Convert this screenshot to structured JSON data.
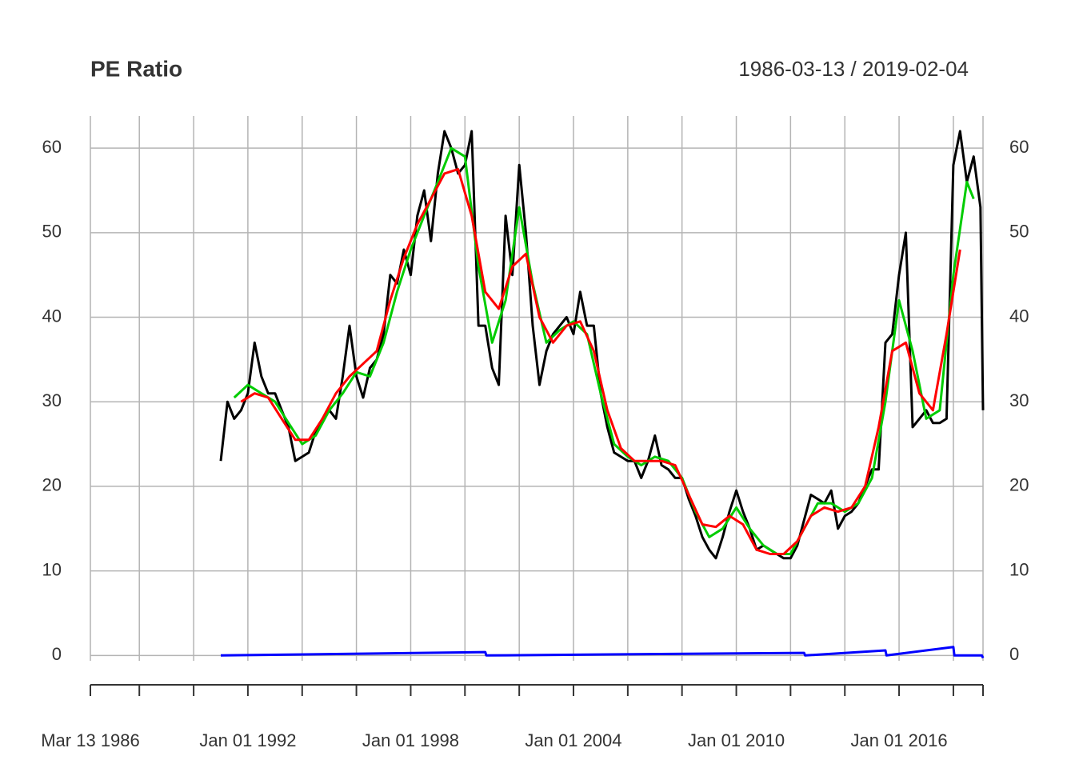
{
  "chart_data": {
    "type": "line",
    "title": "PE Ratio",
    "subtitle": "1986-03-13 / 2019-02-04",
    "xlim": [
      "1986-03-13",
      "2019-02-04"
    ],
    "xticks": [
      {
        "value": "1986-03-13",
        "label": "Mar 13 1986"
      },
      {
        "value": "1988-01-01",
        "label": null
      },
      {
        "value": "1990-01-01",
        "label": null
      },
      {
        "value": "1992-01-01",
        "label": "Jan 01 1992"
      },
      {
        "value": "1994-01-01",
        "label": null
      },
      {
        "value": "1996-01-01",
        "label": null
      },
      {
        "value": "1998-01-01",
        "label": "Jan 01 1998"
      },
      {
        "value": "2000-01-01",
        "label": null
      },
      {
        "value": "2002-01-01",
        "label": null
      },
      {
        "value": "2004-01-01",
        "label": "Jan 01 2004"
      },
      {
        "value": "2006-01-01",
        "label": null
      },
      {
        "value": "2008-01-01",
        "label": null
      },
      {
        "value": "2010-01-01",
        "label": "Jan 01 2010"
      },
      {
        "value": "2012-01-01",
        "label": null
      },
      {
        "value": "2014-01-01",
        "label": null
      },
      {
        "value": "2016-01-01",
        "label": "Jan 01 2016"
      },
      {
        "value": "2018-01-01",
        "label": null
      },
      {
        "value": "2019-02-04",
        "label": null
      }
    ],
    "ylim": [
      -1.2,
      63.8
    ],
    "yticks": [
      0,
      10,
      20,
      30,
      40,
      50,
      60
    ],
    "grid": true,
    "series": [
      {
        "color": "#000000",
        "x": [
          "1991-01-01",
          "1991-04-01",
          "1991-07-01",
          "1991-10-01",
          "1992-01-01",
          "1992-04-01",
          "1992-07-01",
          "1992-10-01",
          "1993-01-01",
          "1993-04-01",
          "1993-07-01",
          "1993-10-01",
          "1994-01-01",
          "1994-04-01",
          "1994-07-01",
          "1994-10-01",
          "1995-01-01",
          "1995-04-01",
          "1995-07-01",
          "1995-10-01",
          "1996-01-01",
          "1996-04-01",
          "1996-07-01",
          "1996-10-01",
          "1997-01-01",
          "1997-04-01",
          "1997-07-01",
          "1997-10-01",
          "1998-01-01",
          "1998-04-01",
          "1998-07-01",
          "1998-10-01",
          "1999-01-01",
          "1999-04-01",
          "1999-07-01",
          "1999-10-01",
          "2000-01-01",
          "2000-04-01",
          "2000-07-01",
          "2000-10-01",
          "2001-01-01",
          "2001-04-01",
          "2001-07-01",
          "2001-10-01",
          "2002-01-01",
          "2002-04-01",
          "2002-07-01",
          "2002-10-01",
          "2003-01-01",
          "2003-04-01",
          "2003-07-01",
          "2003-10-01",
          "2004-01-01",
          "2004-04-01",
          "2004-07-01",
          "2004-10-01",
          "2005-01-01",
          "2005-04-01",
          "2005-07-01",
          "2005-10-01",
          "2006-01-01",
          "2006-04-01",
          "2006-07-01",
          "2006-10-01",
          "2007-01-01",
          "2007-04-01",
          "2007-07-01",
          "2007-10-01",
          "2008-01-01",
          "2008-04-01",
          "2008-07-01",
          "2008-10-01",
          "2009-01-01",
          "2009-04-01",
          "2009-07-01",
          "2009-10-01",
          "2010-01-01",
          "2010-04-01",
          "2010-07-01",
          "2010-10-01",
          "2011-01-01",
          "2011-04-01",
          "2011-07-01",
          "2011-10-01",
          "2012-01-01",
          "2012-04-01",
          "2012-07-01",
          "2012-10-01",
          "2013-01-01",
          "2013-04-01",
          "2013-07-01",
          "2013-10-01",
          "2014-01-01",
          "2014-04-01",
          "2014-07-01",
          "2014-10-01",
          "2015-01-01",
          "2015-04-01",
          "2015-07-01",
          "2015-10-01",
          "2016-01-01",
          "2016-04-01",
          "2016-07-01",
          "2016-10-01",
          "2017-01-01",
          "2017-04-01",
          "2017-07-01",
          "2017-10-01",
          "2018-01-01",
          "2018-04-01",
          "2018-07-01",
          "2018-10-01",
          "2019-01-01",
          "2019-02-04"
        ],
        "values": [
          23,
          30,
          28,
          29,
          31,
          37,
          33,
          31,
          31,
          29,
          27,
          23,
          23.5,
          24,
          26.5,
          28,
          29,
          28,
          33,
          39,
          33,
          30.5,
          34,
          35,
          38,
          45,
          44,
          48,
          45,
          52,
          55,
          49,
          57,
          62,
          60,
          57,
          58,
          62,
          39,
          39,
          34,
          32,
          52,
          45,
          58,
          50,
          39,
          32,
          36,
          38,
          39,
          40,
          38,
          43,
          39,
          39,
          31,
          27,
          24,
          23.5,
          23,
          23,
          21,
          23,
          26,
          22.5,
          22,
          21,
          21,
          18.5,
          16.5,
          14,
          12.5,
          11.5,
          14,
          17,
          19.5,
          17,
          15,
          12.5,
          13,
          12.5,
          12,
          11.5,
          11.5,
          13,
          16,
          19,
          18.5,
          18,
          19.5,
          15,
          16.5,
          17,
          18,
          20,
          22,
          22,
          37,
          38,
          45,
          50,
          27,
          28,
          29,
          27.5,
          27.5,
          28,
          58,
          62,
          56,
          59,
          53,
          29
        ]
      },
      {
        "color": "#00cc00",
        "x": [
          "1991-07-01",
          "1992-01-01",
          "1992-07-01",
          "1993-01-01",
          "1993-07-01",
          "1994-01-01",
          "1994-07-01",
          "1995-01-01",
          "1995-07-01",
          "1996-01-01",
          "1996-07-01",
          "1997-01-01",
          "1997-07-01",
          "1998-01-01",
          "1998-07-01",
          "1999-01-01",
          "1999-07-01",
          "2000-01-01",
          "2000-07-01",
          "2001-01-01",
          "2001-07-01",
          "2002-01-01",
          "2002-07-01",
          "2003-01-01",
          "2003-07-01",
          "2004-01-01",
          "2004-07-01",
          "2005-01-01",
          "2005-07-01",
          "2006-01-01",
          "2006-07-01",
          "2007-01-01",
          "2007-07-01",
          "2008-01-01",
          "2008-07-01",
          "2009-01-01",
          "2009-07-01",
          "2010-01-01",
          "2010-07-01",
          "2011-01-01",
          "2011-07-01",
          "2012-01-01",
          "2012-07-01",
          "2013-01-01",
          "2013-07-01",
          "2014-01-01",
          "2014-07-01",
          "2015-01-01",
          "2015-07-01",
          "2016-01-01",
          "2016-07-01",
          "2017-01-01",
          "2017-07-01",
          "2018-01-01",
          "2018-07-01",
          "2018-10-01"
        ],
        "values": [
          30.5,
          32,
          31,
          30,
          27.5,
          25,
          26,
          29,
          31,
          33.5,
          33,
          37,
          43,
          48,
          52,
          56,
          60,
          59,
          46,
          37,
          42,
          53,
          44,
          37,
          38.5,
          39.5,
          38,
          31,
          25,
          23.5,
          22.5,
          23.5,
          23,
          21,
          17,
          14,
          15,
          17.5,
          15,
          13,
          12,
          12,
          15,
          18,
          18,
          17,
          18,
          21,
          30,
          42,
          36,
          28,
          29,
          45,
          56,
          54
        ]
      },
      {
        "color": "#ff0000",
        "x": [
          "1991-10-01",
          "1992-04-01",
          "1992-10-01",
          "1993-04-01",
          "1993-10-01",
          "1994-04-01",
          "1994-10-01",
          "1995-04-01",
          "1995-10-01",
          "1996-04-01",
          "1996-10-01",
          "1997-04-01",
          "1997-10-01",
          "1998-04-01",
          "1998-10-01",
          "1999-04-01",
          "1999-10-01",
          "2000-04-01",
          "2000-10-01",
          "2001-04-01",
          "2001-10-01",
          "2002-04-01",
          "2002-10-01",
          "2003-04-01",
          "2003-10-01",
          "2004-04-01",
          "2004-10-01",
          "2005-04-01",
          "2005-10-01",
          "2006-04-01",
          "2006-10-01",
          "2007-04-01",
          "2007-10-01",
          "2008-04-01",
          "2008-10-01",
          "2009-04-01",
          "2009-10-01",
          "2010-04-01",
          "2010-10-01",
          "2011-04-01",
          "2011-10-01",
          "2012-04-01",
          "2012-10-01",
          "2013-04-01",
          "2013-10-01",
          "2014-04-01",
          "2014-10-01",
          "2015-04-01",
          "2015-10-01",
          "2016-04-01",
          "2016-10-01",
          "2017-04-01",
          "2017-10-01",
          "2018-04-01"
        ],
        "values": [
          30,
          31,
          30.5,
          28,
          25.5,
          25.5,
          28,
          31,
          33,
          34.5,
          36,
          42,
          47,
          51,
          54,
          57,
          57.5,
          52,
          43,
          41,
          46,
          47.5,
          40,
          37,
          39,
          39.5,
          36,
          29,
          24.5,
          23,
          23,
          23,
          22.5,
          19,
          15.5,
          15.2,
          16.5,
          15.5,
          12.5,
          12,
          12,
          13.5,
          16.5,
          17.5,
          17,
          17.5,
          20,
          27,
          36,
          37,
          31,
          29,
          38,
          48
        ]
      },
      {
        "color": "#0000ff",
        "x": [
          "1991-01-01",
          "2000-10-01",
          "2000-10-15",
          "2012-07-01",
          "2012-07-15",
          "2015-07-01",
          "2015-07-15",
          "2018-01-01",
          "2018-01-15",
          "2019-01-20",
          "2019-02-04"
        ],
        "values": [
          0,
          0.4,
          0,
          0.3,
          0,
          0.6,
          0,
          1.0,
          0,
          0,
          -0.3
        ]
      }
    ]
  }
}
